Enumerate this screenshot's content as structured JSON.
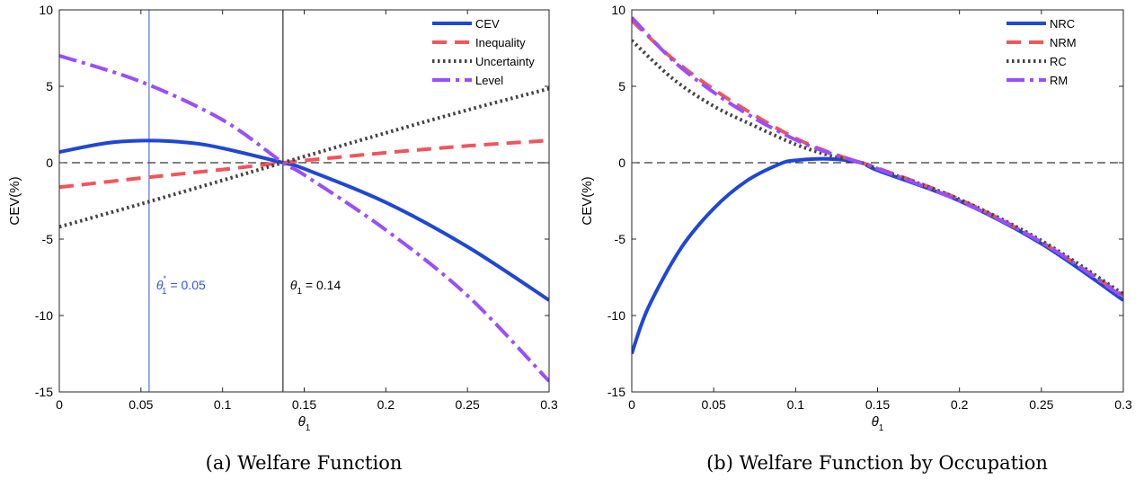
{
  "chart_data": [
    {
      "type": "line",
      "caption": "(a) Welfare Function",
      "xlabel": "θ",
      "xlabel_sub": "1",
      "ylabel": "CEV(%)",
      "xlim": [
        0,
        0.3
      ],
      "ylim": [
        -15,
        10
      ],
      "xticks": [
        "0",
        "0.05",
        "0.1",
        "0.15",
        "0.2",
        "0.25",
        "0.3"
      ],
      "xtick_values": [
        0,
        0.05,
        0.1,
        0.15,
        0.2,
        0.25,
        0.3
      ],
      "yticks": [
        "-15",
        "-10",
        "-5",
        "0",
        "5",
        "10"
      ],
      "ytick_values": [
        -15,
        -10,
        -5,
        0,
        5,
        10
      ],
      "zero_line": true,
      "legend_position": "top-right",
      "vlines": [
        {
          "x": 0.055,
          "color": "#3355dd",
          "label_main": "θ",
          "label_sub": "1",
          "label_sup": "*",
          "label_value": " = 0.05"
        },
        {
          "x": 0.137,
          "color": "#000000",
          "label_main": "θ",
          "label_sub": "1",
          "label_sup": "",
          "label_value": " = 0.14"
        }
      ],
      "series": [
        {
          "name": "CEV",
          "color": "#1f47d6",
          "dash": "",
          "x": [
            0,
            0.03,
            0.055,
            0.08,
            0.1,
            0.137,
            0.15,
            0.2,
            0.25,
            0.3
          ],
          "y": [
            0.7,
            1.3,
            1.45,
            1.3,
            0.95,
            0.0,
            -0.4,
            -2.6,
            -5.5,
            -9.0
          ]
        },
        {
          "name": "Inequality",
          "color": "#f2545b",
          "dash": "16,9",
          "x": [
            0,
            0.055,
            0.1,
            0.137,
            0.2,
            0.25,
            0.3
          ],
          "y": [
            -1.6,
            -0.95,
            -0.45,
            0.0,
            0.65,
            1.1,
            1.45
          ]
        },
        {
          "name": "Uncertainty",
          "color": "#444444",
          "dash": "2.5,3.5",
          "x": [
            0,
            0.05,
            0.1,
            0.137,
            0.2,
            0.25,
            0.3
          ],
          "y": [
            -4.2,
            -2.7,
            -1.15,
            0.0,
            1.95,
            3.45,
            4.85
          ]
        },
        {
          "name": "Level",
          "color": "#9b4dff",
          "dash": "20,6,4,6",
          "x": [
            0,
            0.05,
            0.1,
            0.137,
            0.15,
            0.2,
            0.25,
            0.3
          ],
          "y": [
            7.0,
            5.3,
            2.8,
            0.0,
            -0.8,
            -4.4,
            -8.7,
            -14.3
          ]
        }
      ]
    },
    {
      "type": "line",
      "caption": "(b) Welfare Function by Occupation",
      "xlabel": "θ",
      "xlabel_sub": "1",
      "ylabel": "CEV(%)",
      "xlim": [
        0,
        0.3
      ],
      "ylim": [
        -15,
        10
      ],
      "xticks": [
        "0",
        "0.05",
        "0.1",
        "0.15",
        "0.2",
        "0.25",
        "0.3"
      ],
      "xtick_values": [
        0,
        0.05,
        0.1,
        0.15,
        0.2,
        0.25,
        0.3
      ],
      "yticks": [
        "-15",
        "-10",
        "-5",
        "0",
        "5",
        "10"
      ],
      "ytick_values": [
        -15,
        -10,
        -5,
        0,
        5,
        10
      ],
      "zero_line": true,
      "legend_position": "top-right",
      "vlines": [],
      "series": [
        {
          "name": "NRC",
          "color": "#1f47d6",
          "dash": "",
          "x": [
            0,
            0.01,
            0.03,
            0.05,
            0.07,
            0.09,
            0.1,
            0.12,
            0.14,
            0.15,
            0.2,
            0.25,
            0.3
          ],
          "y": [
            -12.5,
            -9.5,
            -5.6,
            -3.0,
            -1.2,
            -0.1,
            0.15,
            0.25,
            0.0,
            -0.5,
            -2.5,
            -5.3,
            -9.0
          ]
        },
        {
          "name": "NRM",
          "color": "#f2545b",
          "dash": "16,9",
          "x": [
            0,
            0.025,
            0.05,
            0.075,
            0.1,
            0.12,
            0.14,
            0.15,
            0.2,
            0.25,
            0.3
          ],
          "y": [
            9.3,
            6.8,
            4.8,
            3.1,
            1.6,
            0.7,
            0.0,
            -0.35,
            -2.4,
            -5.2,
            -8.7
          ]
        },
        {
          "name": "RC",
          "color": "#444444",
          "dash": "2.5,3.5",
          "x": [
            0,
            0.025,
            0.05,
            0.075,
            0.1,
            0.12,
            0.14,
            0.15,
            0.2,
            0.25,
            0.3
          ],
          "y": [
            8.0,
            5.5,
            3.7,
            2.4,
            1.2,
            0.5,
            0.0,
            -0.4,
            -2.4,
            -5.1,
            -8.6
          ]
        },
        {
          "name": "RM",
          "color": "#9b4dff",
          "dash": "20,6,4,6",
          "x": [
            0,
            0.025,
            0.05,
            0.075,
            0.1,
            0.12,
            0.14,
            0.15,
            0.2,
            0.25,
            0.3
          ],
          "y": [
            9.5,
            6.7,
            4.6,
            2.9,
            1.5,
            0.65,
            0.0,
            -0.4,
            -2.5,
            -5.2,
            -8.8
          ]
        }
      ]
    }
  ]
}
